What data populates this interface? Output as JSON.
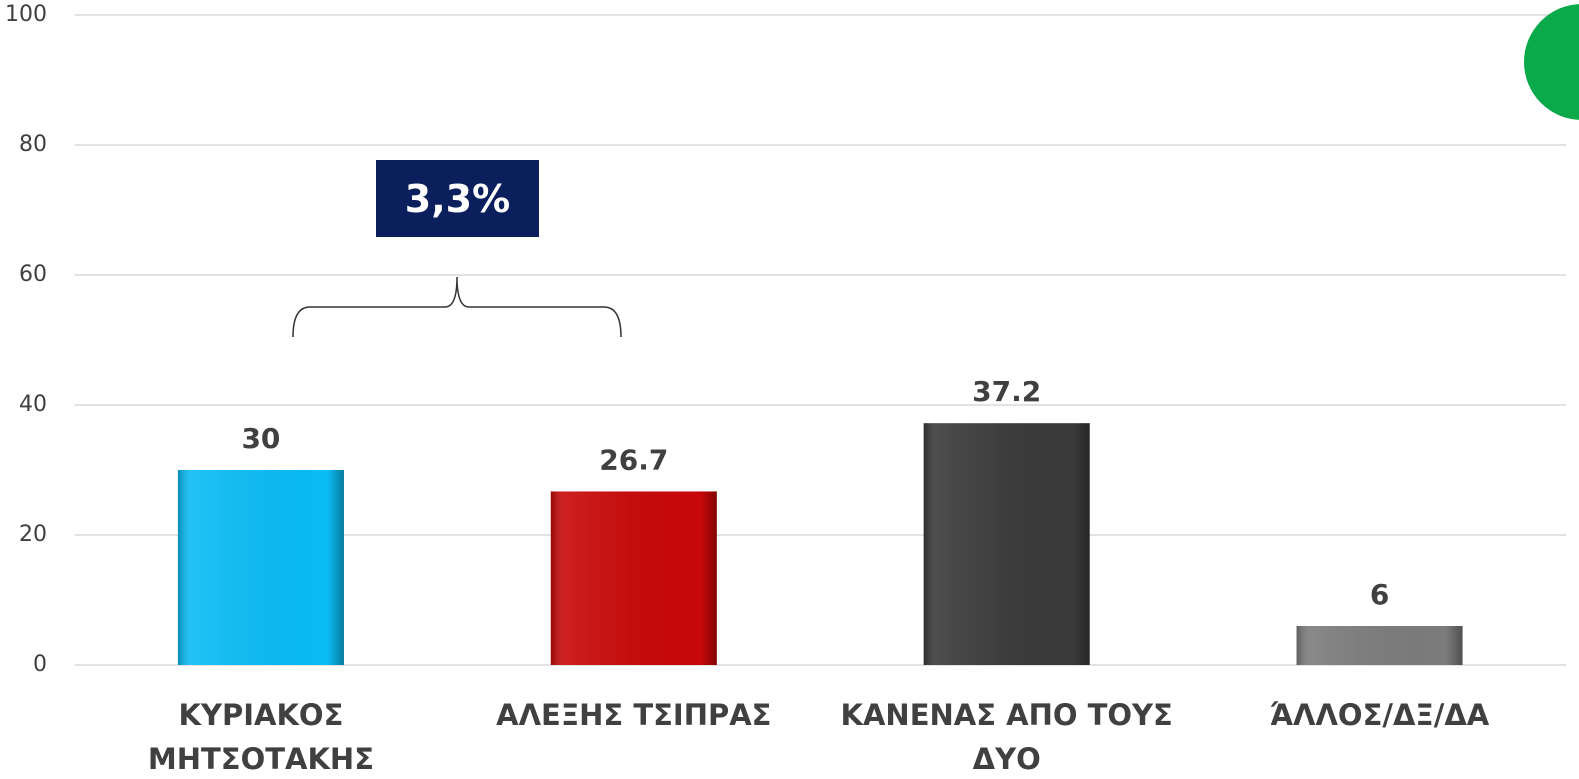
{
  "chart_data": {
    "type": "bar",
    "categories": [
      "ΚΥΡΙΑΚΟΣ ΜΗΤΣΟΤΑΚΗΣ",
      "ΑΛΕΞΗΣ ΤΣΙΠΡΑΣ",
      "ΚΑΝΕΝΑΣ ΑΠΟ ΤΟΥΣ ΔΥΟ",
      "ΆΛΛΟΣ/ΔΞ/ΔΑ"
    ],
    "values": [
      30,
      26.7,
      37.2,
      6
    ],
    "colors": [
      "#0abcf5",
      "#c80808",
      "#3a3a3a",
      "#7c7c7c"
    ],
    "ylim": [
      0,
      100
    ],
    "yticks": [
      0,
      20,
      40,
      60,
      80,
      100
    ],
    "grid": true,
    "annotation": "3,3%"
  }
}
